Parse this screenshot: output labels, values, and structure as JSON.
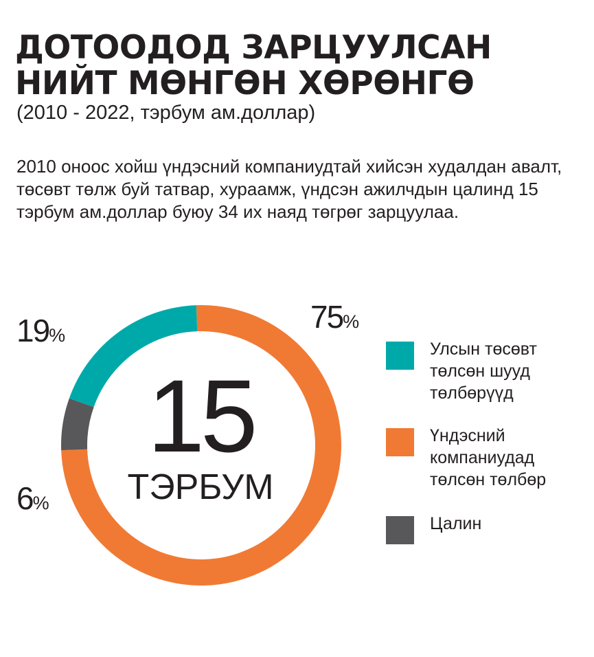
{
  "header": {
    "title": "ДОТООДОД ЗАРЦУУЛСАН НИЙТ МӨНГӨН ХӨРӨНГӨ",
    "subtitle": "(2010 - 2022, тэрбум ам.доллар)"
  },
  "intro": {
    "text": "2010 оноос хойш үндэсний компаниудтай хийсэн худалдан авалт, төсөвт төлж буй татвар, хураамж, үндсэн ажилчдын цалинд 15 тэрбум ам.доллар буюу 34 их наяд төгрөг зарцуулаа."
  },
  "chart_data": {
    "type": "pie",
    "variant": "donut",
    "center_value": "15",
    "center_label": "ТЭРБУМ",
    "slices": [
      {
        "label": "Үндэсний компаниудад төлсөн төлбөр",
        "value": 75,
        "value_text": "75",
        "color": "#f07a34"
      },
      {
        "label": "Цалин",
        "value": 6,
        "value_text": "6",
        "color": "#58585a"
      },
      {
        "label": "Улсын төсөвт төлсөн шууд төлбөрүүд",
        "value": 19,
        "value_text": "19",
        "color": "#00a9a9"
      }
    ],
    "percent_symbol": "%",
    "legend": [
      {
        "label": "Улсын төсөвт төлсөн шууд төлбөрүүд",
        "color": "#00a9a9"
      },
      {
        "label": "Үндэсний компаниудад төлсөн төлбөр",
        "color": "#f07a34"
      },
      {
        "label": "Цалин",
        "color": "#58585a"
      }
    ],
    "legend_position": "right"
  }
}
